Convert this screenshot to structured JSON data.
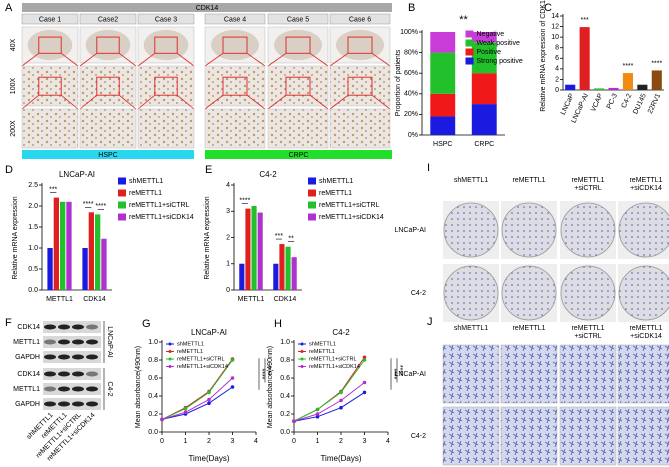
{
  "chart_data": [
    {
      "type": "stacked",
      "panel_label": "B",
      "ylabel": "Proportion of patients",
      "categories": [
        "HSPC",
        "CRPC"
      ],
      "series": [
        {
          "name": "Strong positive",
          "color": "#1a1ae0",
          "values": [
            18,
            30
          ]
        },
        {
          "name": "Positive",
          "color": "#f01818",
          "values": [
            22,
            30
          ]
        },
        {
          "name": "Weak positive",
          "color": "#22c02a",
          "values": [
            40,
            30
          ]
        },
        {
          "name": "Negative",
          "color": "#c83cd8",
          "values": [
            20,
            10
          ]
        }
      ],
      "ylim": [
        0,
        100
      ],
      "yticks": [
        {
          "value": 0,
          "label": "0%"
        },
        {
          "value": 20,
          "label": "20%"
        },
        {
          "value": 40,
          "label": "40%"
        },
        {
          "value": 60,
          "label": "60%"
        },
        {
          "value": 80,
          "label": "80%"
        },
        {
          "value": 100,
          "label": "100%"
        }
      ],
      "legend": "upper right",
      "annotations": [
        "**"
      ],
      "annotation_color": "#e02020"
    },
    {
      "type": "bar",
      "panel_label": "C",
      "ylabel": "Relative mRNA expression of CDK14",
      "categories": [
        "LNCaP",
        "LNCaP-AI",
        "VCAP",
        "PC-3",
        "C4-2",
        "DU145",
        "22RV1"
      ],
      "values": [
        1.0,
        11.9,
        0.3,
        0.4,
        3.2,
        1.0,
        3.7
      ],
      "colors": [
        "#1a1ae0",
        "#e02020",
        "#22c02a",
        "#b030d0",
        "#f08a10",
        "#222222",
        "#8a4a10"
      ],
      "ylim": [
        0,
        14
      ],
      "yticks": [
        0,
        2,
        4,
        6,
        8,
        10,
        12,
        14
      ],
      "annotations": [
        "***",
        "****",
        "****"
      ],
      "annotation_color": "#e02020"
    },
    {
      "type": "grouped",
      "panel_label": "D",
      "title": "LNCaP-AI",
      "ylabel": "Relative mRNA expression",
      "categories": [
        "METTL1",
        "CDK14"
      ],
      "series": [
        {
          "name": "shMETTL1",
          "color": "#1a1ae0",
          "values": [
            1.0,
            1.0
          ]
        },
        {
          "name": "reMETTL1",
          "color": "#e02020",
          "values": [
            2.2,
            1.85
          ]
        },
        {
          "name": "reMETTL1+siCTRL",
          "color": "#22c02a",
          "values": [
            2.1,
            1.8
          ]
        },
        {
          "name": "reMETTL1+siCDK14",
          "color": "#b030d0",
          "values": [
            2.1,
            1.22
          ]
        }
      ],
      "ylim": [
        0,
        2.5
      ],
      "yticks": [
        {
          "value": 0,
          "label": "0.0"
        },
        0.5,
        {
          "value": 1,
          "label": "1.0"
        },
        1.5,
        {
          "value": 2,
          "label": "2.0"
        },
        2.5
      ],
      "legend": "outside right",
      "annotations": [
        "***",
        "****",
        "****"
      ],
      "annotation_color": "#e02020"
    },
    {
      "type": "grouped",
      "panel_label": "E",
      "title": "C4-2",
      "ylabel": "Relative mRNA expression",
      "categories": [
        "METTL1",
        "CDK14"
      ],
      "series": [
        {
          "name": "shMETTL1",
          "color": "#1a1ae0",
          "values": [
            1.0,
            1.0
          ]
        },
        {
          "name": "reMETTL1",
          "color": "#e02020",
          "values": [
            3.1,
            1.75
          ]
        },
        {
          "name": "reMETTL1+siCTRL",
          "color": "#22c02a",
          "values": [
            3.2,
            1.65
          ]
        },
        {
          "name": "reMETTL1+siCDK14",
          "color": "#b030d0",
          "values": [
            2.95,
            1.25
          ]
        }
      ],
      "ylim": [
        0,
        4
      ],
      "yticks": [
        0,
        1,
        2,
        3,
        4
      ],
      "legend": "outside right",
      "annotations": [
        "****",
        "***",
        "**"
      ],
      "annotation_color": "#e02020"
    },
    {
      "type": "line",
      "panel_label": "G",
      "title": "LNCaP-AI",
      "xlabel": "Time(Days)",
      "ylabel": "Mean absorbance(490nm)",
      "x": [
        0,
        1,
        2,
        3
      ],
      "series": [
        {
          "name": "shMETTL1",
          "color": "#1a1ae0",
          "values": [
            0.14,
            0.2,
            0.32,
            0.5
          ]
        },
        {
          "name": "reMETTL1",
          "color": "#e02020",
          "values": [
            0.14,
            0.27,
            0.45,
            0.81
          ]
        },
        {
          "name": "reMETTL1+siCTRL",
          "color": "#22c02a",
          "values": [
            0.14,
            0.26,
            0.44,
            0.8
          ]
        },
        {
          "name": "reMETTL1+siCDK14",
          "color": "#b030d0",
          "values": [
            0.14,
            0.22,
            0.36,
            0.6
          ]
        }
      ],
      "xlim": [
        0,
        4
      ],
      "xticks": [
        0,
        1,
        2,
        3,
        4
      ],
      "ylim": [
        0,
        1
      ],
      "yticks": [
        {
          "value": 0,
          "label": "0.0"
        },
        0.2,
        0.4,
        0.6,
        0.8,
        {
          "value": 1,
          "label": "1.0"
        }
      ],
      "legend": "upper left",
      "annotations": [
        "****",
        "****"
      ],
      "annotation_color": "#e02020"
    },
    {
      "type": "line",
      "panel_label": "H",
      "title": "C4-2",
      "xlabel": "Time(Days)",
      "ylabel": "Mean absorbance(490nm)",
      "x": [
        0,
        1,
        2,
        3
      ],
      "series": [
        {
          "name": "shMETTL1",
          "color": "#1a1ae0",
          "values": [
            0.12,
            0.17,
            0.27,
            0.44
          ]
        },
        {
          "name": "reMETTL1",
          "color": "#e02020",
          "values": [
            0.12,
            0.25,
            0.45,
            0.83
          ]
        },
        {
          "name": "reMETTL1+siCTRL",
          "color": "#22c02a",
          "values": [
            0.12,
            0.25,
            0.44,
            0.8
          ]
        },
        {
          "name": "reMETTL1+siCDK14",
          "color": "#b030d0",
          "values": [
            0.12,
            0.2,
            0.35,
            0.55
          ]
        }
      ],
      "xlim": [
        0,
        4
      ],
      "xticks": [
        0,
        1,
        2,
        3,
        4
      ],
      "ylim": [
        0,
        1
      ],
      "yticks": [
        {
          "value": 0,
          "label": "0.0"
        },
        0.2,
        0.4,
        0.6,
        0.8,
        {
          "value": 1,
          "label": "1.0"
        }
      ],
      "legend": "upper left",
      "annotations": [
        "****",
        "****"
      ],
      "annotation_color": "#e02020"
    }
  ],
  "panel_a": {
    "label": "A",
    "header": "CDK14",
    "cases": [
      "Case 1",
      "Case2",
      "Case 3",
      "Case 4",
      "Case 5",
      "Case 6"
    ],
    "magnifications": [
      "40X",
      "100X",
      "200X"
    ],
    "groups": [
      "HSPC",
      "CRPC"
    ]
  },
  "panel_f": {
    "label": "F",
    "proteins": [
      "CDK14",
      "METTL1",
      "GAPDH",
      "CDK14",
      "METTL1",
      "GAPDH"
    ],
    "cell_lines": [
      "LNCaP-AI",
      "C4-2"
    ],
    "lanes": [
      "shMETTL1",
      "reMETTL1",
      "reMETTL1+siCTRL",
      "reMETTL1+siCDK14"
    ]
  },
  "panel_i": {
    "label": "I",
    "columns": [
      [
        "shMETTL1"
      ],
      [
        "reMETTL1"
      ],
      [
        "reMETTL1",
        "+siCTRL"
      ],
      [
        "reMETTL1",
        "+siCDK14"
      ]
    ],
    "rows": [
      "LNCaP-AI",
      "C4-2"
    ]
  },
  "panel_j": {
    "label": "J",
    "columns": [
      [
        "shMETTL1"
      ],
      [
        "reMETTL1"
      ],
      [
        "reMETTL1",
        "+siCTRL"
      ],
      [
        "reMETTL1",
        "+siCDK14"
      ]
    ],
    "rows": [
      "LNCaP-AI",
      "C4-2"
    ]
  }
}
